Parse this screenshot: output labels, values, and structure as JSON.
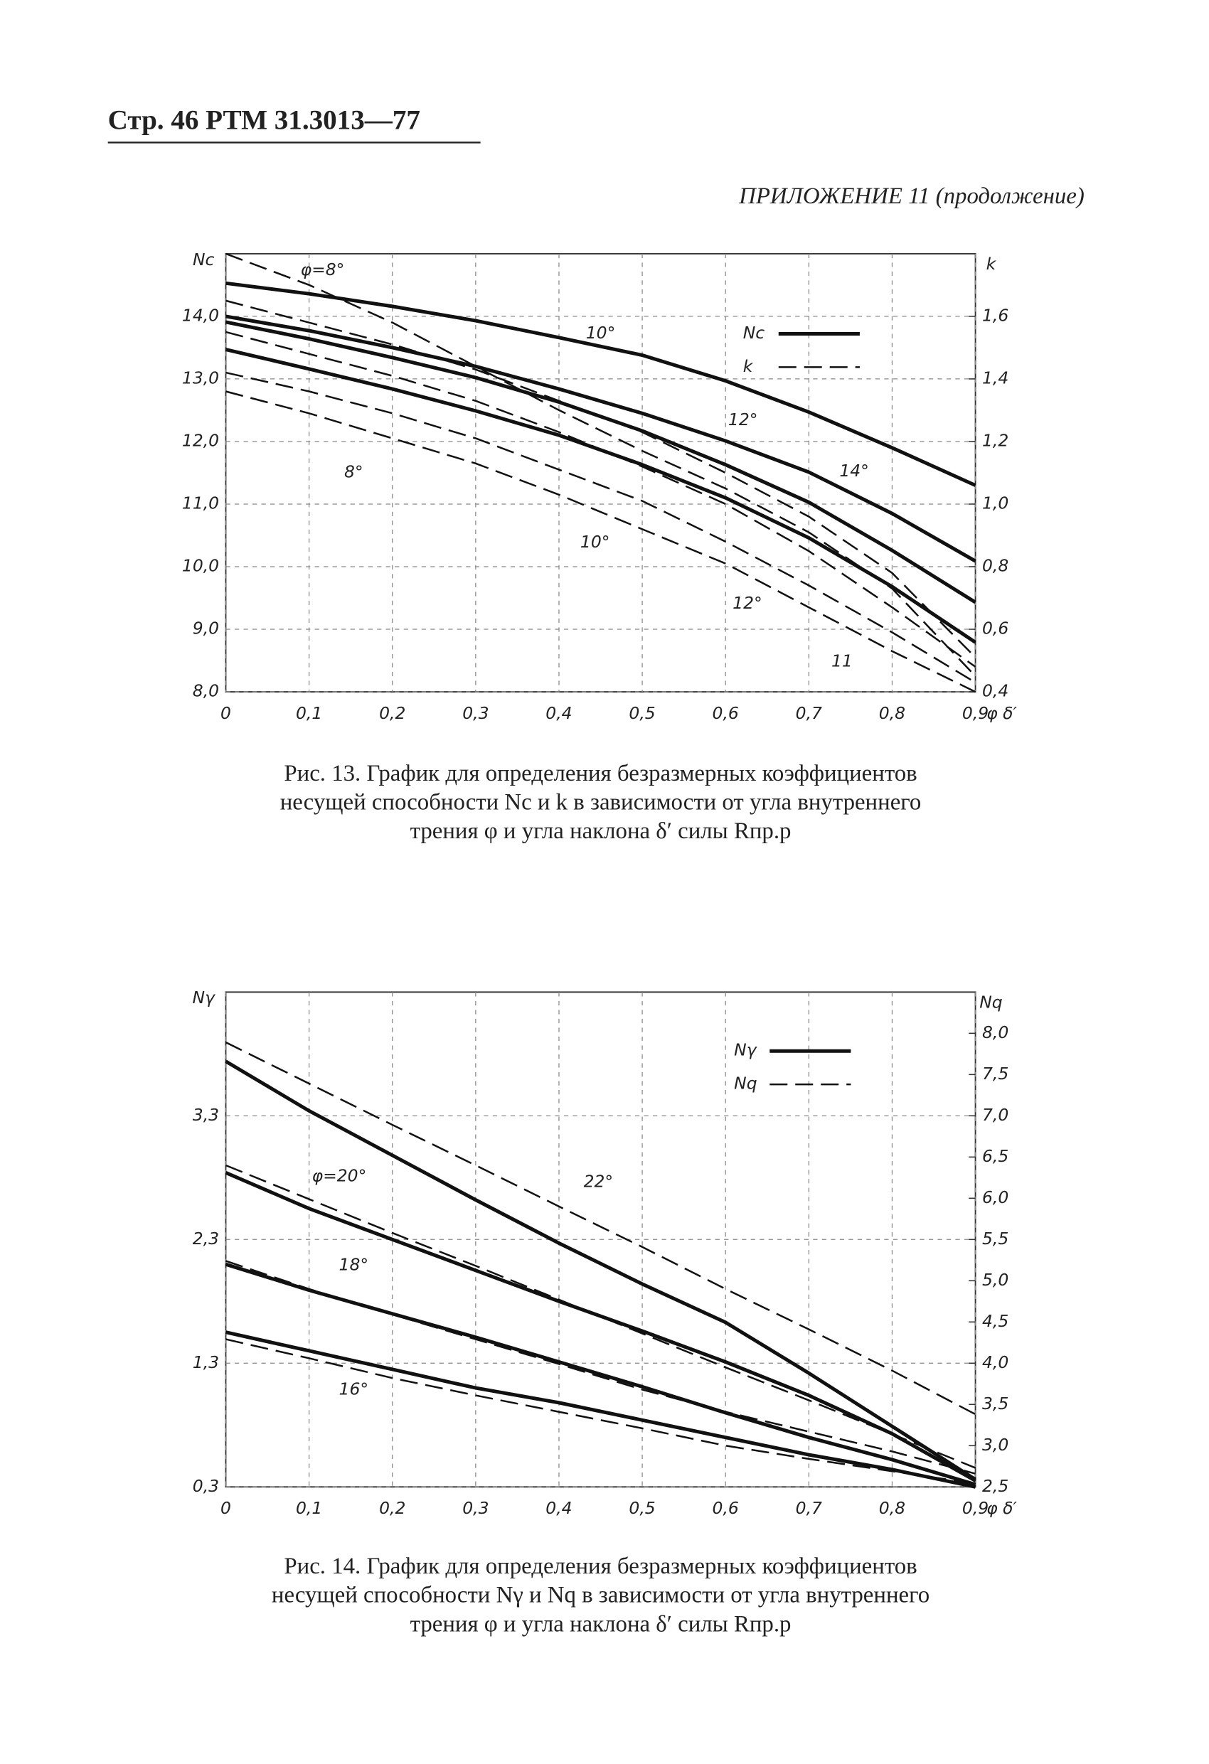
{
  "header": {
    "page": "Стр. 46  РТМ 31.3013—77",
    "appendix": "ПРИЛОЖЕНИЕ 11 (продолжение)"
  },
  "chart_data": [
    {
      "type": "line",
      "caption": [
        "Рис. 13. График для определения безразмерных  коэффициентов",
        "несущей способности Nс и k в зависимости от угла  внутреннего",
        "трения φ и угла наклона δ′ силы Rпр.р"
      ],
      "ylabel": "Nс",
      "y2label": "k",
      "xlabel": "φ δ′",
      "x": [
        0,
        0.1,
        0.2,
        0.3,
        0.4,
        0.5,
        0.6,
        0.7,
        0.8,
        0.9
      ],
      "xlim": [
        0,
        0.9
      ],
      "xticks": [
        0,
        {
          "value": 0.1,
          "label": "0,1"
        },
        {
          "value": 0.2,
          "label": "0,2"
        },
        {
          "value": 0.3,
          "label": "0,3"
        },
        {
          "value": 0.4,
          "label": "0,4"
        },
        {
          "value": 0.5,
          "label": "0,5"
        },
        {
          "value": 0.6,
          "label": "0,6"
        },
        {
          "value": 0.7,
          "label": "0,7"
        },
        {
          "value": 0.8,
          "label": "0,8"
        },
        {
          "value": 0.9,
          "label": "0,9"
        }
      ],
      "ylim": [
        8,
        15
      ],
      "yticks": [
        {
          "value": 8,
          "label": "8,0"
        },
        {
          "value": 9,
          "label": "9,0"
        },
        {
          "value": 10,
          "label": "10,0"
        },
        {
          "value": 11,
          "label": "11,0"
        },
        {
          "value": 12,
          "label": "12,0"
        },
        {
          "value": 13,
          "label": "13,0"
        },
        {
          "value": 14,
          "label": "14,0"
        }
      ],
      "y2lim": [
        0.4,
        1.8
      ],
      "y2ticks": [
        {
          "value": 0.4,
          "label": "0,4"
        },
        {
          "value": 0.6,
          "label": "0,6"
        },
        {
          "value": 0.8,
          "label": "0,8"
        },
        {
          "value": 1.0,
          "label": "1,0"
        },
        {
          "value": 1.2,
          "label": "1,2"
        },
        {
          "value": 1.4,
          "label": "1,4"
        },
        {
          "value": 1.6,
          "label": "1,6"
        }
      ],
      "grid": true,
      "legend": [
        {
          "label": "Nс",
          "style": "solid"
        },
        {
          "label": "k",
          "style": "dashed"
        }
      ],
      "series": [
        {
          "style": "solid",
          "values": [
            14.53,
            14.36,
            14.16,
            13.93,
            13.66,
            13.38,
            12.97,
            12.47,
            11.9,
            11.3
          ]
        },
        {
          "style": "solid",
          "values": [
            14.0,
            13.77,
            13.5,
            13.2,
            12.84,
            12.45,
            12.01,
            11.51,
            10.85,
            10.09
          ]
        },
        {
          "style": "solid",
          "values": [
            13.91,
            13.64,
            13.34,
            13.02,
            12.63,
            12.17,
            11.63,
            11.03,
            10.26,
            9.43
          ]
        },
        {
          "style": "solid",
          "values": [
            13.47,
            13.16,
            12.84,
            12.49,
            12.1,
            11.63,
            11.1,
            10.46,
            9.68,
            8.79
          ]
        },
        {
          "style": "dashed",
          "axis": "y2",
          "values": [
            1.8,
            1.7,
            1.58,
            1.44,
            1.3,
            1.17,
            1.05,
            0.91,
            0.73,
            0.45
          ]
        },
        {
          "style": "dashed",
          "axis": "y2",
          "values": [
            1.65,
            1.58,
            1.51,
            1.43,
            1.33,
            1.23,
            1.1,
            0.96,
            0.78,
            0.51
          ]
        },
        {
          "style": "dashed",
          "axis": "y2",
          "values": [
            1.55,
            1.48,
            1.41,
            1.33,
            1.23,
            1.12,
            1.0,
            0.85,
            0.67,
            0.48
          ]
        },
        {
          "style": "dashed",
          "axis": "y2",
          "values": [
            1.42,
            1.36,
            1.29,
            1.21,
            1.11,
            1.01,
            0.88,
            0.74,
            0.59,
            0.43
          ]
        },
        {
          "style": "dashed",
          "axis": "y2",
          "values": [
            1.36,
            1.29,
            1.21,
            1.13,
            1.03,
            0.92,
            0.81,
            0.67,
            0.53,
            0.4
          ]
        }
      ],
      "annotations": [
        "φ=8°",
        "10°",
        "12°",
        "14°",
        "8°",
        "10°",
        "12°",
        "11"
      ]
    },
    {
      "type": "line",
      "caption": [
        "Рис. 14. График для определения безразмерных  коэффициентов",
        "несущей способности Nγ  и Nq в зависимости от угла внутреннего",
        "трения φ и угла наклона δ′ силы Rпр.р"
      ],
      "ylabel": "Nγ",
      "y2label": "Nq",
      "xlabel": "φ δ′",
      "x": [
        0,
        0.1,
        0.2,
        0.3,
        0.4,
        0.5,
        0.6,
        0.7,
        0.8,
        0.9
      ],
      "xlim": [
        0,
        0.9
      ],
      "xticks": [
        0,
        {
          "value": 0.1,
          "label": "0,1"
        },
        {
          "value": 0.2,
          "label": "0,2"
        },
        {
          "value": 0.3,
          "label": "0,3"
        },
        {
          "value": 0.4,
          "label": "0,4"
        },
        {
          "value": 0.5,
          "label": "0,5"
        },
        {
          "value": 0.6,
          "label": "0,6"
        },
        {
          "value": 0.7,
          "label": "0,7"
        },
        {
          "value": 0.8,
          "label": "0,8"
        },
        {
          "value": 0.9,
          "label": "0,9"
        }
      ],
      "ylim": [
        0.3,
        4.3
      ],
      "yticks": [
        {
          "value": 0.3,
          "label": "0,3"
        },
        {
          "value": 1.3,
          "label": "1,3"
        },
        {
          "value": 2.3,
          "label": "2,3"
        },
        {
          "value": 3.3,
          "label": "3,3"
        }
      ],
      "y2lim": [
        2.5,
        8.5
      ],
      "y2ticks": [
        {
          "value": 2.5,
          "label": "2,5"
        },
        {
          "value": 3.0,
          "label": "3,0"
        },
        {
          "value": 3.5,
          "label": "3,5"
        },
        {
          "value": 4.0,
          "label": "4,0"
        },
        {
          "value": 4.5,
          "label": "4,5"
        },
        {
          "value": 5.0,
          "label": "5,0"
        },
        {
          "value": 5.5,
          "label": "5,5"
        },
        {
          "value": 6.0,
          "label": "6,0"
        },
        {
          "value": 6.5,
          "label": "6,5"
        },
        {
          "value": 7.0,
          "label": "7,0"
        },
        {
          "value": 7.5,
          "label": "7,5"
        },
        {
          "value": 8.0,
          "label": "8,0"
        }
      ],
      "grid": true,
      "legend": [
        {
          "label": "Nγ",
          "style": "solid"
        },
        {
          "label": "Nq",
          "style": "dashed"
        }
      ],
      "series": [
        {
          "style": "solid",
          "values": [
            3.74,
            3.34,
            2.98,
            2.62,
            2.27,
            1.94,
            1.63,
            1.22,
            0.79,
            0.36
          ]
        },
        {
          "style": "solid",
          "values": [
            2.84,
            2.55,
            2.3,
            2.05,
            1.8,
            1.56,
            1.31,
            1.04,
            0.73,
            0.35
          ]
        },
        {
          "style": "solid",
          "values": [
            2.1,
            1.89,
            1.7,
            1.51,
            1.31,
            1.11,
            0.9,
            0.7,
            0.52,
            0.32
          ]
        },
        {
          "style": "solid",
          "values": [
            1.55,
            1.4,
            1.25,
            1.1,
            0.98,
            0.84,
            0.7,
            0.56,
            0.44,
            0.3
          ]
        },
        {
          "style": "dashed",
          "axis": "y2",
          "values": [
            7.89,
            7.39,
            6.89,
            6.4,
            5.9,
            5.41,
            4.9,
            4.41,
            3.91,
            3.38
          ]
        },
        {
          "style": "dashed",
          "axis": "y2",
          "values": [
            6.4,
            5.99,
            5.58,
            5.18,
            4.77,
            4.36,
            3.95,
            3.55,
            3.14,
            2.73
          ]
        },
        {
          "style": "dashed",
          "axis": "y2",
          "values": [
            5.24,
            4.9,
            4.59,
            4.29,
            3.99,
            3.68,
            3.41,
            3.17,
            2.93,
            2.66
          ]
        },
        {
          "style": "dashed",
          "axis": "y2",
          "values": [
            4.29,
            4.06,
            3.82,
            3.61,
            3.41,
            3.21,
            3.0,
            2.84,
            2.69,
            2.54
          ]
        }
      ],
      "annotations": [
        "φ=20°",
        "22°",
        "18°",
        "16°"
      ]
    }
  ]
}
